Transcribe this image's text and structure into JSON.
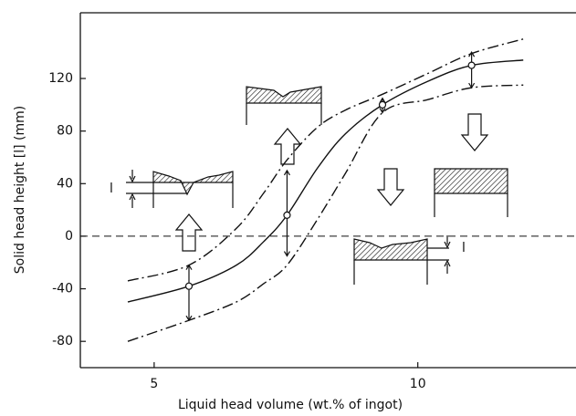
{
  "chart_data": {
    "type": "line",
    "x_label": "Liquid head volume (wt.% of ingot)",
    "y_label": "Solid head height [l] (mm)",
    "annotations": [
      "l",
      "l"
    ],
    "xlim": [
      3.6,
      13
    ],
    "xticks": [
      5,
      10
    ],
    "ylim": [
      -100,
      170
    ],
    "yticks": [
      120,
      80,
      40,
      0,
      -40,
      -80
    ],
    "zero_line": true,
    "x": [
      4.5,
      5.66,
      6.56,
      7.08,
      7.52,
      8.1,
      8.63,
      9.33,
      10.2,
      11.02,
      12.0
    ],
    "series": [
      {
        "color": "#111111",
        "style": "dashdot",
        "values": [
          -34,
          -22,
          6,
          33,
          58,
          83,
          96,
          108,
          124,
          139,
          150
        ]
      },
      {
        "color": "#111111",
        "style": "solid",
        "values": [
          -50,
          -38,
          -22,
          -4,
          16,
          52,
          78,
          100,
          118,
          130,
          134
        ]
      },
      {
        "color": "#111111",
        "style": "dashdot",
        "values": [
          -80,
          -64,
          -50,
          -36,
          -22,
          13,
          48,
          94,
          104,
          113,
          115
        ]
      }
    ],
    "points": {
      "color": "#111111",
      "x": [
        5.66,
        7.52,
        9.33,
        11.02
      ],
      "values": [
        -38,
        16,
        100,
        130
      ],
      "lows": [
        -64,
        -15,
        94,
        113
      ],
      "highs": [
        -22,
        50,
        105,
        140
      ]
    }
  }
}
